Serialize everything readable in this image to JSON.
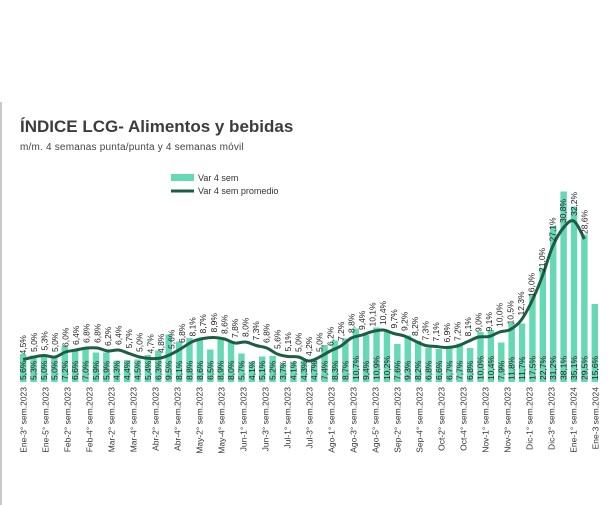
{
  "title": "ÍNDICE LCG- Alimentos y bebidas",
  "subtitle": "m/m. 4 semanas punta/punta y 4 semanas móvil",
  "colors": {
    "bar": "#66d9b4",
    "line": "#1d5c45",
    "title": "#3c3c3c"
  },
  "chart_data": {
    "type": "bar",
    "title": "ÍNDICE LCG- Alimentos y bebidas",
    "subtitle": "m/m. 4 semanas punta/punta y 4 semanas móvil",
    "legend": {
      "position": "top-left",
      "entries": [
        "Var 4 sem",
        "Var 4 sem promedio"
      ]
    },
    "grid": false,
    "ylim": [
      0,
      42
    ],
    "tick_labels": [
      "Ene-3° sem.2023",
      "Ene-5° sem.2023",
      "Feb-2° sem.2023",
      "Feb-4° sem.2023",
      "Mar-2° sem.2023",
      "Mar-4° sem.2023",
      "Abr-2° sem.2023",
      "Abr-4° sem.2023",
      "May-2° sem.2023",
      "May-4° sem.2023",
      "Jun-1° sem.2023",
      "Jun-3° sem.2023",
      "Jul-1° sem.2023",
      "Jul-3° sem.2023",
      "Ago-1° sem.2023",
      "Ago-3° sem.2023",
      "Ago-5° sem.2023",
      "Sep-2° sem.2023",
      "Sep-4° sem.2023",
      "Oct-2° sem.2023",
      "Oct-4° sem.2023",
      "Nov-1° sem.2023",
      "Nov-3° sem.2023",
      "Dic-1° sem.2023",
      "Dic-3° sem.2023",
      "Ene-1° sem.2024",
      "Ene-3 sem.2024"
    ],
    "series": [
      {
        "name": "Var 4 sem",
        "type": "bar",
        "values": [
          5.6,
          5.3,
          5.0,
          5.0,
          7.2,
          6.6,
          7.0,
          5.9,
          5.9,
          4.3,
          4.4,
          4.5,
          5.4,
          6.3,
          9.5,
          8.1,
          8.8,
          8.6,
          6.5,
          8.9,
          8.0,
          5.7,
          4.1,
          5.1,
          5.2,
          3.7,
          4.1,
          4.3,
          4.7,
          7.4,
          8.3,
          8.7,
          10.7,
          9.4,
          10.9,
          10.2,
          7.6,
          9.3,
          8.2,
          6.8,
          6.6,
          6.7,
          7.7,
          6.8,
          10.0,
          10.4,
          7.9,
          11.8,
          11.7,
          17.5,
          22.7,
          31.2,
          38.1,
          35.1,
          29.5,
          15.6
        ]
      },
      {
        "name": "Var 4 sem promedio",
        "type": "line",
        "values": [
          4.5,
          5.0,
          5.3,
          5.0,
          6.0,
          6.4,
          6.8,
          6.8,
          6.2,
          6.4,
          5.7,
          5.0,
          4.7,
          4.8,
          5.6,
          6.8,
          8.1,
          8.7,
          8.9,
          8.6,
          7.8,
          8.0,
          7.3,
          6.8,
          5.6,
          5.1,
          5.0,
          4.2,
          5.0,
          6.2,
          7.2,
          8.8,
          9.4,
          10.1,
          10.4,
          9.7,
          9.2,
          8.2,
          7.3,
          7.1,
          6.9,
          7.2,
          8.1,
          9.0,
          9.1,
          10.0,
          10.5,
          12.3,
          16.0,
          21.0,
          27.1,
          30.8,
          32.2,
          28.6
        ]
      }
    ]
  }
}
